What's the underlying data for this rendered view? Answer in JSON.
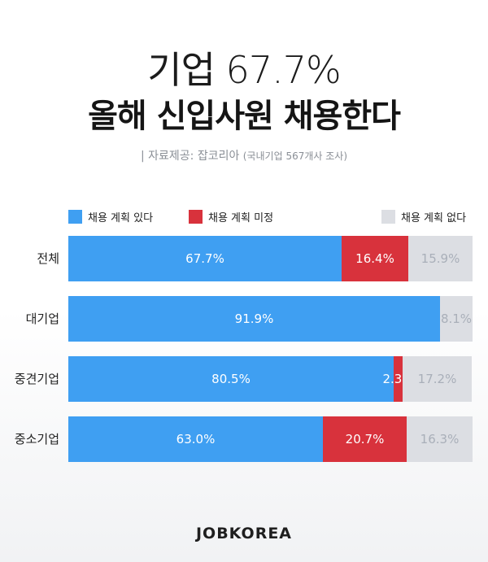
{
  "header": {
    "title_line1": "기업 67.7%",
    "title_line2": "올해 신입사원 채용한다",
    "source_label": "| 자료제공: 잡코리아",
    "source_note": "(국내기업 567개사 조사)"
  },
  "colors": {
    "yes": "#3f9ff2",
    "undecided": "#d8323c",
    "no": "#dcdee3"
  },
  "footer": {
    "logo_text": "JOBKOREA"
  },
  "chart_data": {
    "type": "bar",
    "orientation": "horizontal",
    "stacked": true,
    "normalized": true,
    "legend_placement": "top",
    "categories": [
      "전체",
      "대기업",
      "중견기업",
      "중소기업"
    ],
    "series": [
      {
        "name": "채용 계획 있다",
        "values": [
          67.7,
          91.9,
          80.5,
          63.0
        ],
        "labels": [
          "67.7%",
          "91.9%",
          "80.5%",
          "63.0%"
        ]
      },
      {
        "name": "채용 계획 미정",
        "values": [
          16.4,
          0,
          2.3,
          20.7
        ],
        "labels": [
          "16.4%",
          "",
          "2.3%",
          "20.7%"
        ]
      },
      {
        "name": "채용 계획 없다",
        "values": [
          15.9,
          8.1,
          17.2,
          16.3
        ],
        "labels": [
          "15.9%",
          "8.1%",
          "17.2%",
          "16.3%"
        ]
      }
    ]
  }
}
